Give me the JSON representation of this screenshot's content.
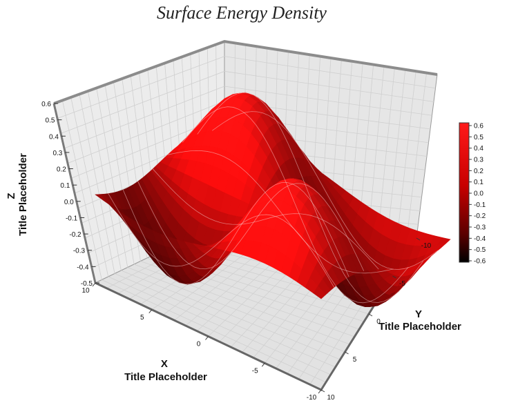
{
  "chart_data": {
    "type": "surface",
    "title": "Surface Energy Density",
    "xlabel": "X Title Placeholder",
    "ylabel": "Y Title Placeholder",
    "zlabel": "Z Title Placeholder",
    "x_ticks": [
      "10",
      "5",
      "0",
      "-5",
      "-10"
    ],
    "y_ticks": [
      "-10",
      "-5",
      "0",
      "5",
      "10"
    ],
    "z_ticks": [
      "0.6",
      "0.5",
      "0.4",
      "0.3",
      "0.2",
      "0.1",
      "0.0",
      "-0.1",
      "-0.2",
      "-0.3",
      "-0.4",
      "-0.5"
    ],
    "zlim": [
      -0.5,
      0.6
    ],
    "xlim": [
      -10,
      10
    ],
    "ylim": [
      -10,
      10
    ],
    "colorbar": {
      "labels": [
        "0.6",
        "0.5",
        "0.4",
        "0.3",
        "0.2",
        "0.1",
        "0.0",
        "-0.1",
        "-0.2",
        "-0.3",
        "-0.4",
        "-0.5",
        "-0.6"
      ],
      "range": [
        -0.6,
        0.6
      ],
      "color_high": "#ff1010",
      "color_mid": "#c00000",
      "color_low": "#000000"
    },
    "grid": true,
    "colors": {
      "surface": "#d40000",
      "contour": "#ffffff",
      "wall": "#e9e9e9",
      "grid": "#c8c8c8"
    }
  }
}
